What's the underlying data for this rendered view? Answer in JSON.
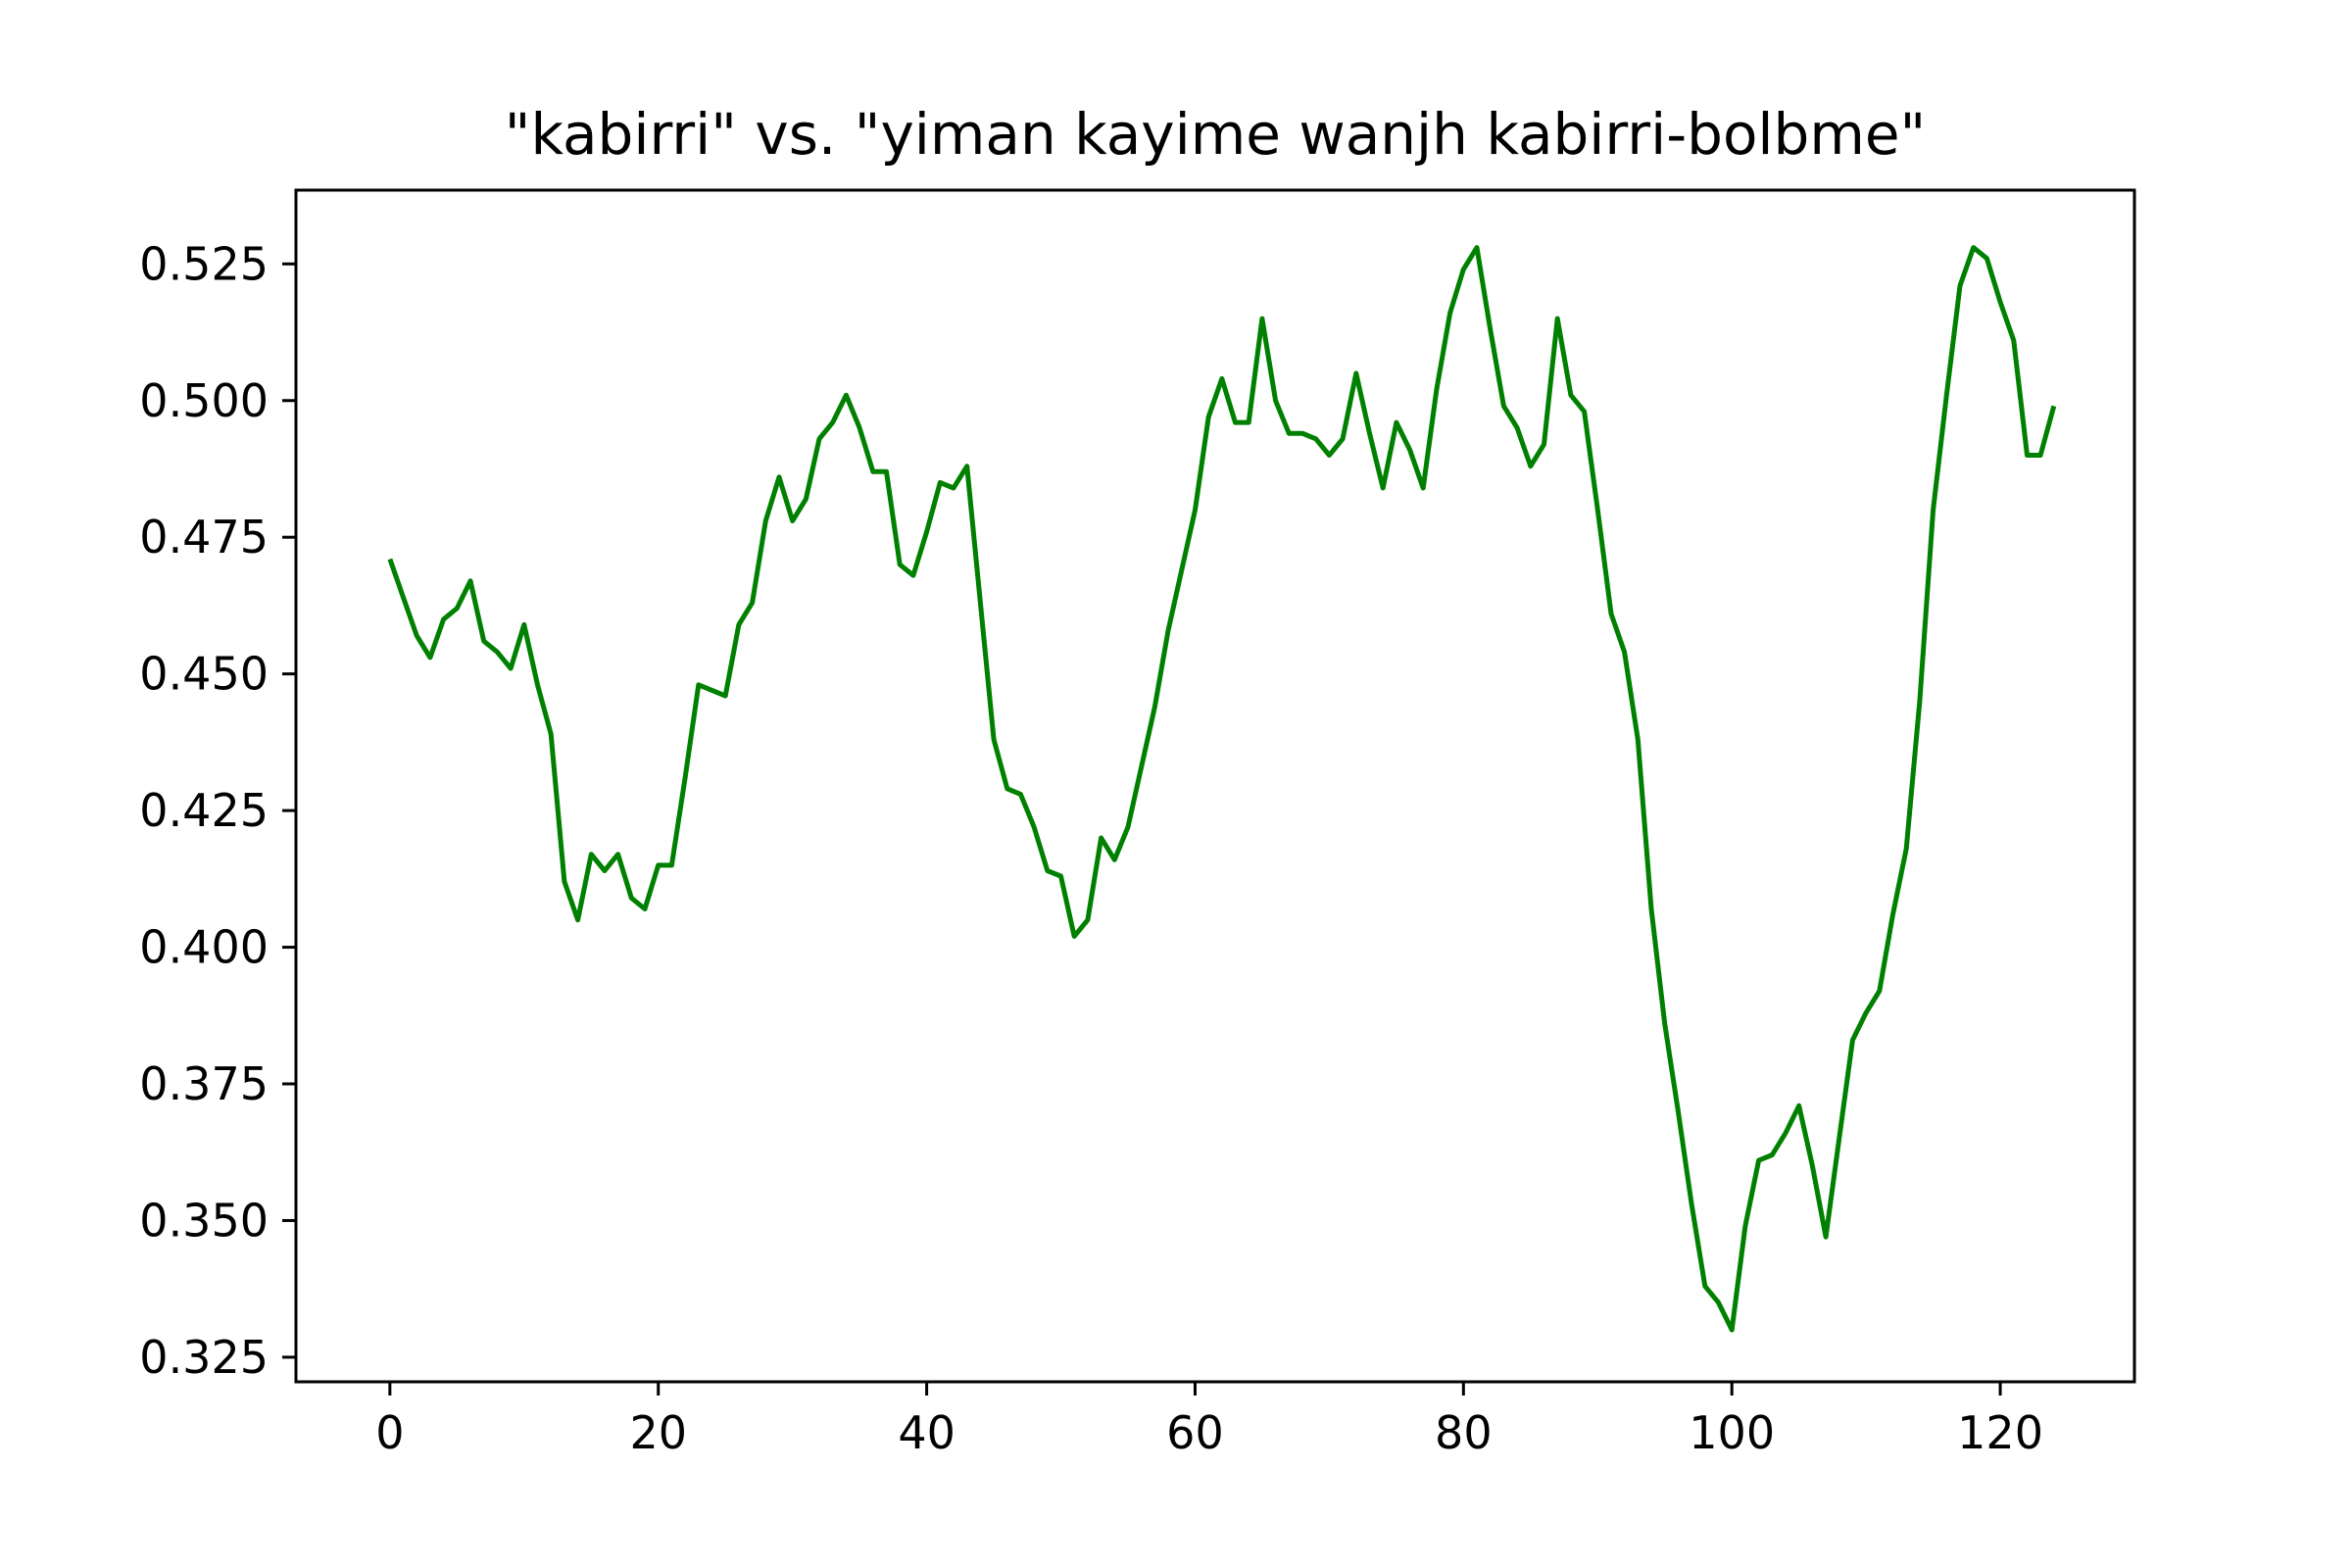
{
  "chart_data": {
    "type": "line",
    "title": "\"kabirri\" vs. \"yiman kayime wanjh kabirri-bolbme\"",
    "xlabel": "",
    "ylabel": "",
    "xlim": [
      -7,
      130
    ],
    "ylim": [
      0.3205,
      0.5385
    ],
    "grid": false,
    "legend": "none",
    "x_ticks": [
      0,
      20,
      40,
      60,
      80,
      100,
      120
    ],
    "x_tick_labels": [
      "0",
      "20",
      "40",
      "60",
      "80",
      "100",
      "120"
    ],
    "y_ticks": [
      0.325,
      0.35,
      0.375,
      0.4,
      0.425,
      0.45,
      0.475,
      0.5,
      0.525
    ],
    "y_tick_labels": [
      "0.325",
      "0.350",
      "0.375",
      "0.400",
      "0.425",
      "0.450",
      "0.475",
      "0.500",
      "0.525"
    ],
    "series": [
      {
        "color": "#008000",
        "x": [
          0,
          1,
          2,
          3,
          4,
          5,
          6,
          7,
          8,
          9,
          10,
          11,
          12,
          13,
          14,
          15,
          16,
          17,
          18,
          19,
          20,
          21,
          22,
          23,
          24,
          25,
          26,
          27,
          28,
          29,
          30,
          31,
          32,
          33,
          34,
          35,
          36,
          37,
          38,
          39,
          40,
          41,
          42,
          43,
          44,
          45,
          46,
          47,
          48,
          49,
          50,
          51,
          52,
          53,
          54,
          55,
          56,
          57,
          58,
          59,
          60,
          61,
          62,
          63,
          64,
          65,
          66,
          67,
          68,
          69,
          70,
          71,
          72,
          73,
          74,
          75,
          76,
          77,
          78,
          79,
          80,
          81,
          82,
          83,
          84,
          85,
          86,
          87,
          88,
          89,
          90,
          91,
          92,
          93,
          94,
          95,
          96,
          97,
          98,
          99,
          100,
          101,
          102,
          103,
          104,
          105,
          106,
          107,
          108,
          109,
          110,
          111,
          112,
          113,
          114,
          115,
          116,
          117,
          118,
          119,
          120,
          121,
          122,
          123,
          124
        ],
        "values": [
          0.471,
          0.464,
          0.457,
          0.453,
          0.46,
          0.462,
          0.467,
          0.456,
          0.454,
          0.451,
          0.459,
          0.448,
          0.439,
          0.412,
          0.405,
          0.417,
          0.414,
          0.417,
          0.409,
          0.407,
          0.415,
          0.415,
          0.431,
          0.448,
          0.447,
          0.446,
          0.459,
          0.463,
          0.478,
          0.486,
          0.478,
          0.482,
          0.493,
          0.496,
          0.501,
          0.495,
          0.487,
          0.487,
          0.47,
          0.468,
          0.476,
          0.485,
          0.484,
          0.488,
          0.463,
          0.438,
          0.429,
          0.428,
          0.422,
          0.414,
          0.413,
          0.402,
          0.405,
          0.42,
          0.416,
          0.422,
          0.433,
          0.444,
          0.458,
          0.469,
          0.48,
          0.497,
          0.504,
          0.496,
          0.496,
          0.515,
          0.5,
          0.494,
          0.494,
          0.493,
          0.49,
          0.493,
          0.505,
          0.494,
          0.484,
          0.496,
          0.491,
          0.484,
          0.502,
          0.516,
          0.524,
          0.528,
          0.513,
          0.499,
          0.495,
          0.488,
          0.492,
          0.515,
          0.501,
          0.498,
          0.48,
          0.461,
          0.454,
          0.438,
          0.407,
          0.386,
          0.37,
          0.353,
          0.338,
          0.335,
          0.33,
          0.349,
          0.361,
          0.362,
          0.366,
          0.371,
          0.36,
          0.347,
          0.365,
          0.383,
          0.388,
          0.392,
          0.406,
          0.418,
          0.445,
          0.48,
          0.501,
          0.521,
          0.528,
          0.526,
          0.518,
          0.511,
          0.49,
          0.49,
          0.499
        ]
      }
    ]
  }
}
